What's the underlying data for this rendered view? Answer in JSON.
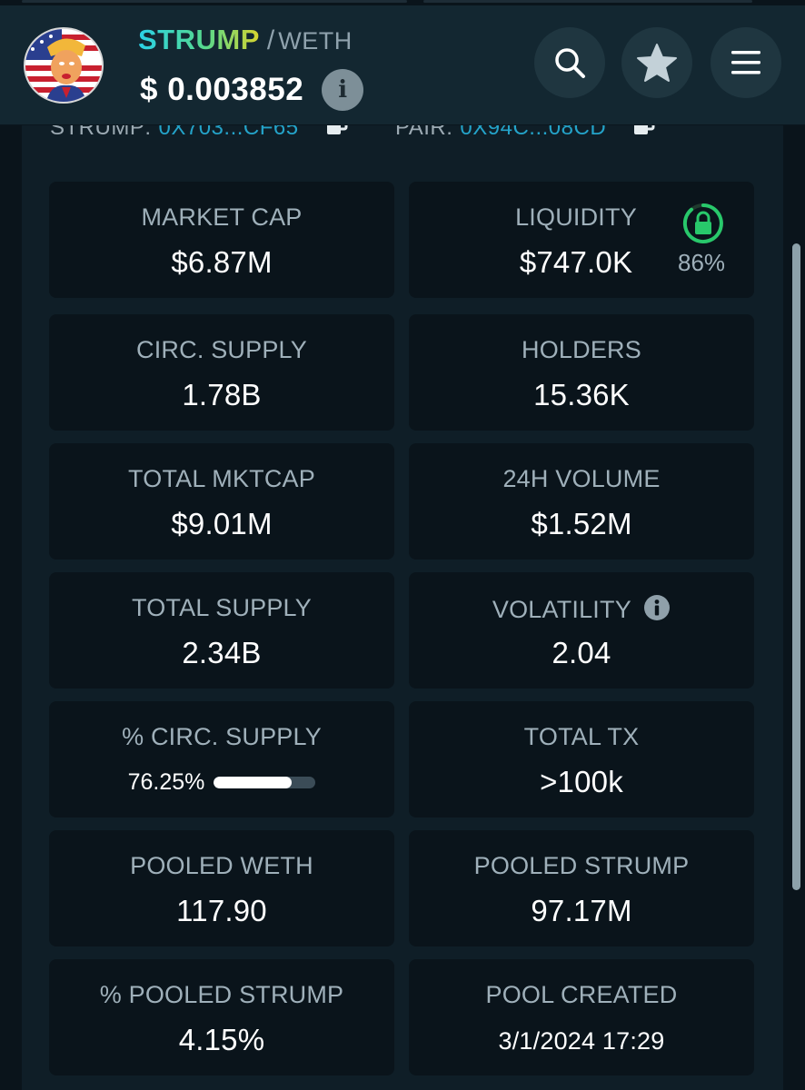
{
  "token": {
    "symbol": "STRUMP",
    "separator": "/",
    "quote": "WETH",
    "price": "$ 0.003852"
  },
  "addresses": {
    "token_label": "STRUMP:",
    "token_value": "0X703...CF65",
    "pair_label": "PAIR:",
    "pair_value": "0X94C...08CD"
  },
  "icons": {
    "search": "search-icon",
    "star": "star-icon",
    "menu": "menu-icon",
    "info": "info-icon",
    "copy": "copy-icon",
    "lock": "lock-icon"
  },
  "colors": {
    "accent_blue": "#24a3c9",
    "lock_green": "#28c86b",
    "card_bg": "#0a141b",
    "header_bg": "#132731"
  },
  "stats": {
    "market_cap": {
      "label": "MARKET CAP",
      "value": "$6.87M"
    },
    "liquidity": {
      "label": "LIQUIDITY",
      "value": "$747.0K",
      "locked_pct": "86%",
      "locked_fraction": 0.86
    },
    "circ_supply": {
      "label": "CIRC. SUPPLY",
      "value": "1.78B"
    },
    "holders": {
      "label": "HOLDERS",
      "value": "15.36K"
    },
    "total_mktcap": {
      "label": "TOTAL MKTCAP",
      "value": "$9.01M"
    },
    "volume_24h": {
      "label": "24H VOLUME",
      "value": "$1.52M"
    },
    "total_supply": {
      "label": "TOTAL SUPPLY",
      "value": "2.34B"
    },
    "volatility": {
      "label": "VOLATILITY",
      "value": "2.04"
    },
    "pct_circ_supply": {
      "label": "% CIRC. SUPPLY",
      "value": "76.25%",
      "fraction": 0.7625
    },
    "total_tx": {
      "label": "TOTAL TX",
      "value": ">100k"
    },
    "pooled_weth": {
      "label": "POOLED WETH",
      "value": "117.90"
    },
    "pooled_strump": {
      "label": "POOLED STRUMP",
      "value": "97.17M"
    },
    "pct_pooled_strump": {
      "label": "% POOLED STRUMP",
      "value": "4.15%"
    },
    "pool_created": {
      "label": "POOL CREATED",
      "value": "3/1/2024 17:29"
    }
  }
}
